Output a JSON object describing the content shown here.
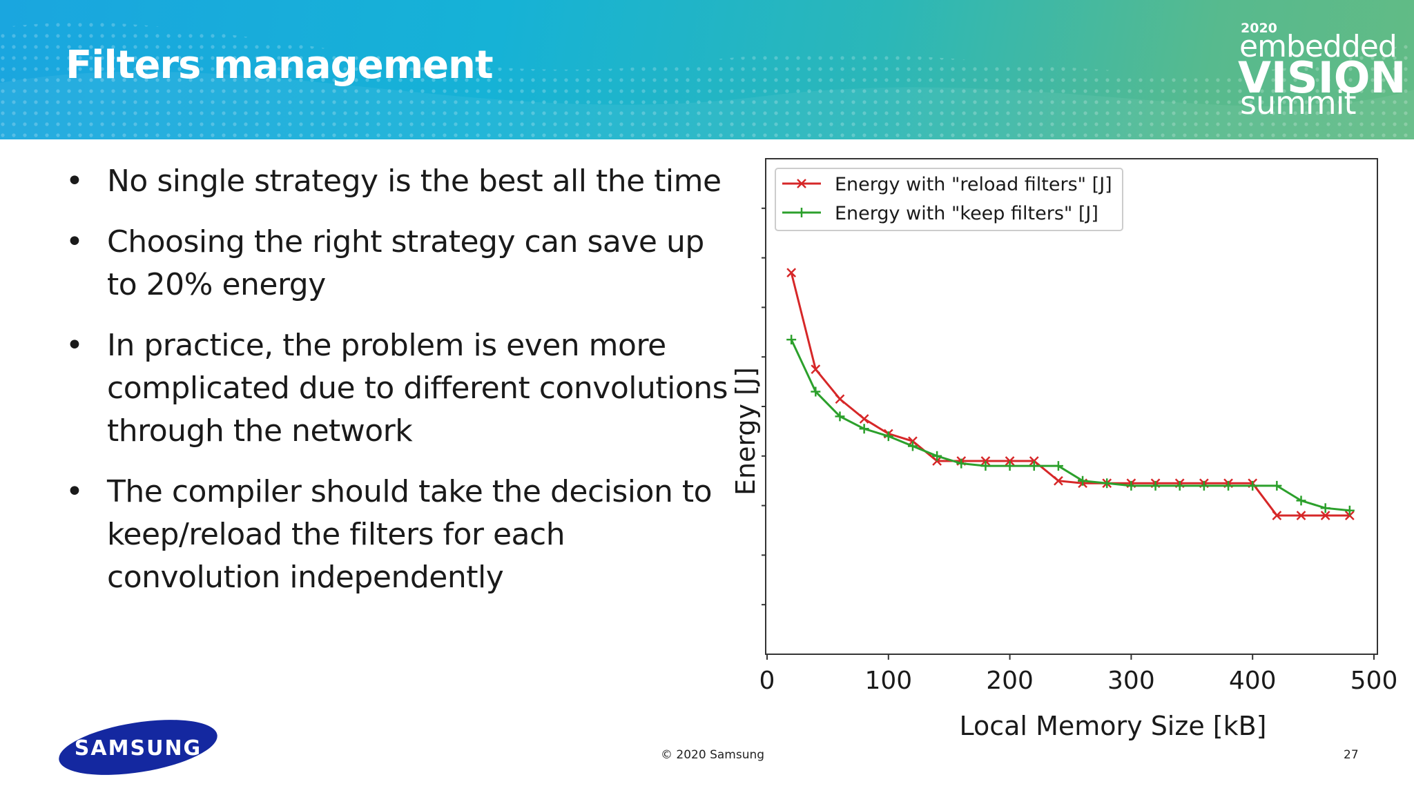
{
  "slide": {
    "title": "Filters management",
    "event_logo": {
      "year": "2020",
      "line1": "embedded",
      "line2": "VISION",
      "line3": "summit"
    },
    "bullets": [
      "No single strategy is the best all the time",
      "Choosing the right strategy can save up to 20% energy",
      "In practice, the problem is even more complicated due to different convolutions through the network",
      "The compiler should take the decision to keep/reload the filters for each convolution independently"
    ],
    "brand_logo": "SAMSUNG",
    "copyright": "© 2020 Samsung",
    "page_number": "27",
    "colors": {
      "banner_start": "#1aa6df",
      "banner_end": "#62bb85",
      "samsung_blue": "#1428a0"
    }
  },
  "chart_data": {
    "type": "line",
    "title": "",
    "xlabel": "Local Memory Size [kB]",
    "ylabel": "Energy [J]",
    "xlim": [
      0,
      500
    ],
    "ylim": [
      0,
      10
    ],
    "x_ticks": [
      "0",
      "100",
      "200",
      "300",
      "400",
      "500"
    ],
    "y_tick_labels_visible": false,
    "legend_position": "top-left",
    "grid": false,
    "series": [
      {
        "name": "Energy with \"reload filters\" [J]",
        "color": "#d62728",
        "marker": "x",
        "x": [
          20,
          40,
          60,
          80,
          100,
          120,
          140,
          160,
          180,
          200,
          220,
          240,
          260,
          280,
          300,
          320,
          340,
          360,
          380,
          400,
          420,
          440,
          460,
          480
        ],
        "y": [
          7.7,
          5.75,
          5.15,
          4.75,
          4.45,
          4.3,
          3.9,
          3.9,
          3.9,
          3.9,
          3.9,
          3.5,
          3.45,
          3.45,
          3.45,
          3.45,
          3.45,
          3.45,
          3.45,
          3.45,
          2.8,
          2.8,
          2.8,
          2.8
        ]
      },
      {
        "name": "Energy with \"keep filters\" [J]",
        "color": "#2ca02c",
        "marker": "+",
        "x": [
          20,
          40,
          60,
          80,
          100,
          120,
          140,
          160,
          180,
          200,
          220,
          240,
          260,
          280,
          300,
          320,
          340,
          360,
          380,
          400,
          420,
          440,
          460,
          480
        ],
        "y": [
          6.35,
          5.3,
          4.8,
          4.55,
          4.4,
          4.2,
          4.0,
          3.85,
          3.8,
          3.8,
          3.8,
          3.8,
          3.5,
          3.45,
          3.4,
          3.4,
          3.4,
          3.4,
          3.4,
          3.4,
          3.4,
          3.1,
          2.95,
          2.9
        ]
      }
    ]
  }
}
